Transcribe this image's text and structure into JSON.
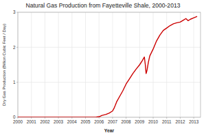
{
  "chart_data": {
    "type": "line",
    "title": "Natural Gas Production from Fayetteville Shale, 2000-2013",
    "xlabel": "Year",
    "ylabel": "Dry Gas Production (Billion Cubic Feet / Day)",
    "xlim": [
      2000,
      2013.5
    ],
    "ylim": [
      0,
      3
    ],
    "xticks": [
      2000,
      2001,
      2002,
      2003,
      2004,
      2005,
      2006,
      2007,
      2008,
      2009,
      2010,
      2011,
      2012,
      2013
    ],
    "yticks": [
      0,
      1,
      2,
      3
    ],
    "grid": true,
    "color": "#cc0000",
    "x": [
      2000.0,
      2000.5,
      2001.0,
      2001.5,
      2002.0,
      2002.5,
      2003.0,
      2003.5,
      2004.0,
      2004.5,
      2005.0,
      2005.5,
      2005.75,
      2006.0,
      2006.1,
      2006.2,
      2006.5,
      2006.75,
      2007.0,
      2007.1,
      2007.2,
      2007.3,
      2007.5,
      2007.75,
      2008.0,
      2008.25,
      2008.5,
      2008.75,
      2009.0,
      2009.2,
      2009.35,
      2009.42,
      2009.48,
      2009.55,
      2009.65,
      2009.75,
      2010.0,
      2010.25,
      2010.5,
      2010.75,
      2011.0,
      2011.25,
      2011.5,
      2011.75,
      2012.0,
      2012.25,
      2012.42,
      2012.58,
      2012.75,
      2013.0,
      2013.25
    ],
    "values": [
      0.0,
      0.0,
      0.0,
      0.0,
      0.0,
      0.0,
      0.0,
      0.0,
      0.0,
      0.0,
      0.0,
      0.0,
      0.0,
      0.02,
      0.03,
      0.05,
      0.08,
      0.12,
      0.18,
      0.25,
      0.34,
      0.44,
      0.58,
      0.75,
      0.95,
      1.1,
      1.25,
      1.38,
      1.5,
      1.62,
      1.72,
      1.5,
      1.25,
      1.35,
      1.58,
      1.75,
      1.95,
      2.18,
      2.35,
      2.48,
      2.55,
      2.62,
      2.67,
      2.7,
      2.72,
      2.78,
      2.82,
      2.76,
      2.8,
      2.84,
      2.88
    ]
  }
}
